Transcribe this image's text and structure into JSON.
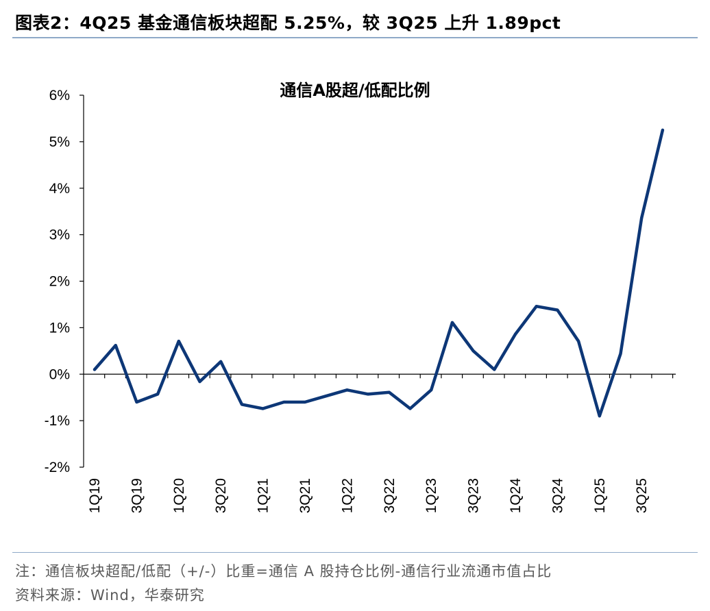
{
  "figure": {
    "label": "图表2：",
    "title": "4Q25 基金通信板块超配 5.25%，较 3Q25 上升 1.89pct"
  },
  "footnote": {
    "note": "注：通信板块超配/低配（+/-）比重=通信 A 股持仓比例-通信行业流通市值占比",
    "source": "资料来源：Wind，华泰研究"
  },
  "colors": {
    "line": "#0d3777",
    "rule": "#8ea9c8",
    "note": "#595959"
  },
  "chart_data": {
    "type": "line",
    "title": "通信A股超/低配比例",
    "x": [
      "1Q19",
      "2Q19",
      "3Q19",
      "4Q19",
      "1Q20",
      "2Q20",
      "3Q20",
      "4Q20",
      "1Q21",
      "2Q21",
      "3Q21",
      "4Q21",
      "1Q22",
      "2Q22",
      "3Q22",
      "4Q22",
      "1Q23",
      "2Q23",
      "3Q23",
      "4Q23",
      "1Q24",
      "2Q24",
      "3Q24",
      "4Q24",
      "1Q25",
      "2Q25",
      "3Q25",
      "4Q25"
    ],
    "x_tick_labels": [
      "1Q19",
      "",
      "3Q19",
      "",
      "1Q20",
      "",
      "3Q20",
      "",
      "1Q21",
      "",
      "3Q21",
      "",
      "1Q22",
      "",
      "3Q22",
      "",
      "1Q23",
      "",
      "3Q23",
      "",
      "1Q24",
      "",
      "3Q24",
      "",
      "1Q25",
      "",
      "3Q25",
      ""
    ],
    "series": [
      {
        "name": "通信A股超/低配比例",
        "unit": "%",
        "values": [
          0.1,
          0.62,
          -0.6,
          -0.43,
          0.71,
          -0.16,
          0.27,
          -0.65,
          -0.74,
          -0.6,
          -0.6,
          -0.47,
          -0.34,
          -0.43,
          -0.39,
          -0.74,
          -0.34,
          1.11,
          0.5,
          0.1,
          0.86,
          1.46,
          1.38,
          0.71,
          -0.9,
          0.44,
          3.36,
          5.25
        ]
      }
    ],
    "ylim": [
      -2,
      6
    ],
    "y_ticks": [
      -2,
      -1,
      0,
      1,
      2,
      3,
      4,
      5,
      6
    ],
    "y_tick_labels": [
      "-2%",
      "-1%",
      "0%",
      "1%",
      "2%",
      "3%",
      "4%",
      "5%",
      "6%"
    ],
    "xlabel": "",
    "ylabel": ""
  }
}
